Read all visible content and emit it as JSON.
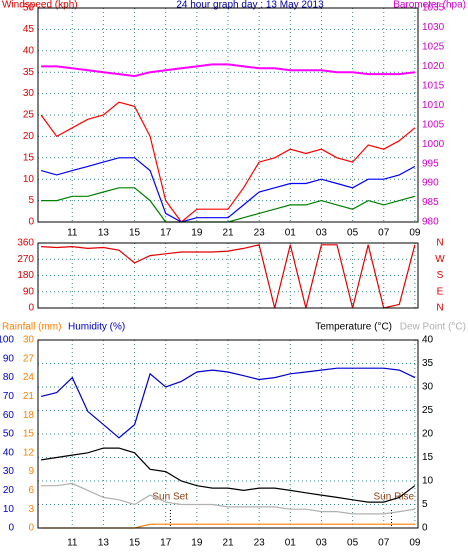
{
  "chart_data": [
    {
      "type": "line",
      "title": "24 hour graph day : 13 May 2013",
      "y_label": "Windspeed (kph)",
      "y2_label": "Barometer (hpa)",
      "x": [
        9,
        10,
        11,
        12,
        13,
        14,
        15,
        16,
        17,
        18,
        19,
        20,
        21,
        22,
        23,
        24,
        25,
        26,
        27,
        28,
        29,
        30,
        31,
        32,
        33
      ],
      "xlim": [
        8.8,
        33.2
      ],
      "xticks": [
        11,
        13,
        15,
        17,
        19,
        21,
        23,
        {
          "value": 25,
          "label": "01"
        },
        {
          "value": 27,
          "label": "03"
        },
        {
          "value": 29,
          "label": "05"
        },
        {
          "value": 31,
          "label": "07"
        },
        {
          "value": 33,
          "label": "09"
        }
      ],
      "ylim": [
        0,
        50
      ],
      "yticks": [
        0,
        5,
        10,
        15,
        20,
        25,
        30,
        35,
        40,
        45,
        50
      ],
      "y2lim": [
        980,
        1035
      ],
      "y2ticks": [
        980,
        985,
        990,
        995,
        1000,
        1005,
        1010,
        1015,
        1020,
        1025,
        1030,
        1035
      ],
      "grid": true,
      "series": [
        {
          "color": "#ff0000",
          "values": [
            25,
            20,
            22,
            24,
            25,
            28,
            27,
            20,
            5,
            0,
            3,
            3,
            3,
            8,
            14,
            15,
            17,
            16,
            17,
            15,
            14,
            18,
            17,
            19,
            22
          ]
        },
        {
          "color": "#0000ff",
          "values": [
            12,
            11,
            12,
            13,
            14,
            15,
            15,
            12,
            2,
            0,
            1,
            1,
            1,
            4,
            7,
            8,
            9,
            9,
            10,
            9,
            8,
            10,
            10,
            11,
            13
          ]
        },
        {
          "color": "#008000",
          "values": [
            5,
            5,
            6,
            6,
            7,
            8,
            8,
            5,
            0,
            0,
            0,
            0,
            0,
            1,
            2,
            3,
            4,
            4,
            5,
            4,
            3,
            5,
            4,
            5,
            6
          ]
        },
        {
          "color": "#ff00ff",
          "axis": "y2",
          "values": [
            1020,
            1020,
            1019.5,
            1019,
            1018.5,
            1018,
            1017.5,
            1018.5,
            1019,
            1019.5,
            1020,
            1020.5,
            1020.5,
            1020,
            1019.5,
            1019.5,
            1019,
            1019,
            1019,
            1018.5,
            1018.5,
            1018,
            1018,
            1018,
            1018.5
          ]
        }
      ]
    },
    {
      "type": "line",
      "x": [
        9,
        10,
        11,
        12,
        13,
        14,
        15,
        16,
        17,
        18,
        19,
        20,
        21,
        22,
        23,
        24,
        25,
        26,
        27,
        28,
        29,
        30,
        31,
        32,
        33
      ],
      "xlim": [
        8.8,
        33.2
      ],
      "xticks": [
        11,
        13,
        15,
        17,
        19,
        21,
        23,
        {
          "value": 25,
          "label": "01"
        },
        {
          "value": 27,
          "label": "03"
        },
        {
          "value": 29,
          "label": "05"
        },
        {
          "value": 31,
          "label": "07"
        },
        {
          "value": 33,
          "label": "09"
        }
      ],
      "ylim": [
        0,
        360
      ],
      "yticks": [
        0,
        90,
        180,
        270,
        360
      ],
      "y2lim": [
        0,
        360
      ],
      "y2ticks": [
        {
          "value": 360,
          "label": "N"
        },
        {
          "value": 270,
          "label": "W"
        },
        {
          "value": 180,
          "label": "S"
        },
        {
          "value": 90,
          "label": "E"
        },
        {
          "value": 0,
          "label": "N"
        }
      ],
      "grid": true,
      "series": [
        {
          "color": "#e00000",
          "values": [
            340,
            335,
            340,
            330,
            335,
            320,
            250,
            290,
            300,
            310,
            310,
            310,
            315,
            330,
            350,
            0,
            350,
            0,
            350,
            350,
            0,
            350,
            0,
            20,
            350
          ]
        }
      ]
    },
    {
      "type": "line",
      "y_label": "Humidity (%)",
      "y3_label": "Rainfall (mm)",
      "y2_label": "Temperature (°C)",
      "dew_point_label": "Dew Point (°C)",
      "x": [
        9,
        10,
        11,
        12,
        13,
        14,
        15,
        16,
        17,
        18,
        19,
        20,
        21,
        22,
        23,
        24,
        25,
        26,
        27,
        28,
        29,
        30,
        31,
        32,
        33
      ],
      "xlim": [
        8.8,
        33.2
      ],
      "xticks": [
        11,
        13,
        15,
        17,
        19,
        21,
        23,
        {
          "value": 25,
          "label": "01"
        },
        {
          "value": 27,
          "label": "03"
        },
        {
          "value": 29,
          "label": "05"
        },
        {
          "value": 31,
          "label": "07"
        },
        {
          "value": 33,
          "label": "09"
        }
      ],
      "ylim": [
        0,
        100
      ],
      "yticks": [
        0,
        10,
        20,
        30,
        40,
        50,
        60,
        70,
        80,
        90,
        100
      ],
      "y3lim": [
        0,
        30
      ],
      "y3ticks": [
        0,
        3,
        6,
        9,
        12,
        15,
        18,
        21,
        24,
        27,
        30
      ],
      "y2lim": [
        0,
        40
      ],
      "y2ticks": [
        0,
        5,
        10,
        15,
        20,
        25,
        30,
        35,
        40
      ],
      "grid": true,
      "annotations": [
        {
          "text": "Sun Set",
          "x": 17.3
        },
        {
          "text": "Sun Rise",
          "x": 31.5
        }
      ],
      "series": [
        {
          "color": "#0000cc",
          "values": [
            70,
            72,
            80,
            62,
            55,
            48,
            55,
            82,
            75,
            78,
            83,
            84,
            83,
            81,
            79,
            80,
            82,
            83,
            84,
            85,
            85,
            85,
            85,
            84,
            80
          ]
        },
        {
          "color": "#000000",
          "axis": "y2",
          "values": [
            14.5,
            15,
            15.5,
            16,
            17,
            17,
            16,
            12.5,
            12,
            10,
            9,
            8.5,
            8.5,
            8,
            8.5,
            8.5,
            8,
            7.5,
            7,
            6.5,
            6,
            5.5,
            5.5,
            6.5,
            9
          ]
        },
        {
          "color": "#b0b0b0",
          "axis": "y2",
          "values": [
            9,
            9,
            9.5,
            8,
            6.5,
            6,
            5,
            7,
            5.5,
            5,
            5,
            5,
            4.5,
            4.5,
            4.5,
            4.5,
            4,
            4,
            3.5,
            3.5,
            3,
            3,
            3,
            3.5,
            4
          ]
        },
        {
          "color": "#ff8000",
          "axis": "y3",
          "values": [
            0,
            0,
            0,
            0,
            0,
            0,
            0,
            0.6,
            0.6,
            0.6,
            0.6,
            0.6,
            0.6,
            0.6,
            0.6,
            0.6,
            0.6,
            0.6,
            0.6,
            0.6,
            0.6,
            0.6,
            0.6,
            0.6,
            0.6
          ]
        }
      ]
    }
  ]
}
